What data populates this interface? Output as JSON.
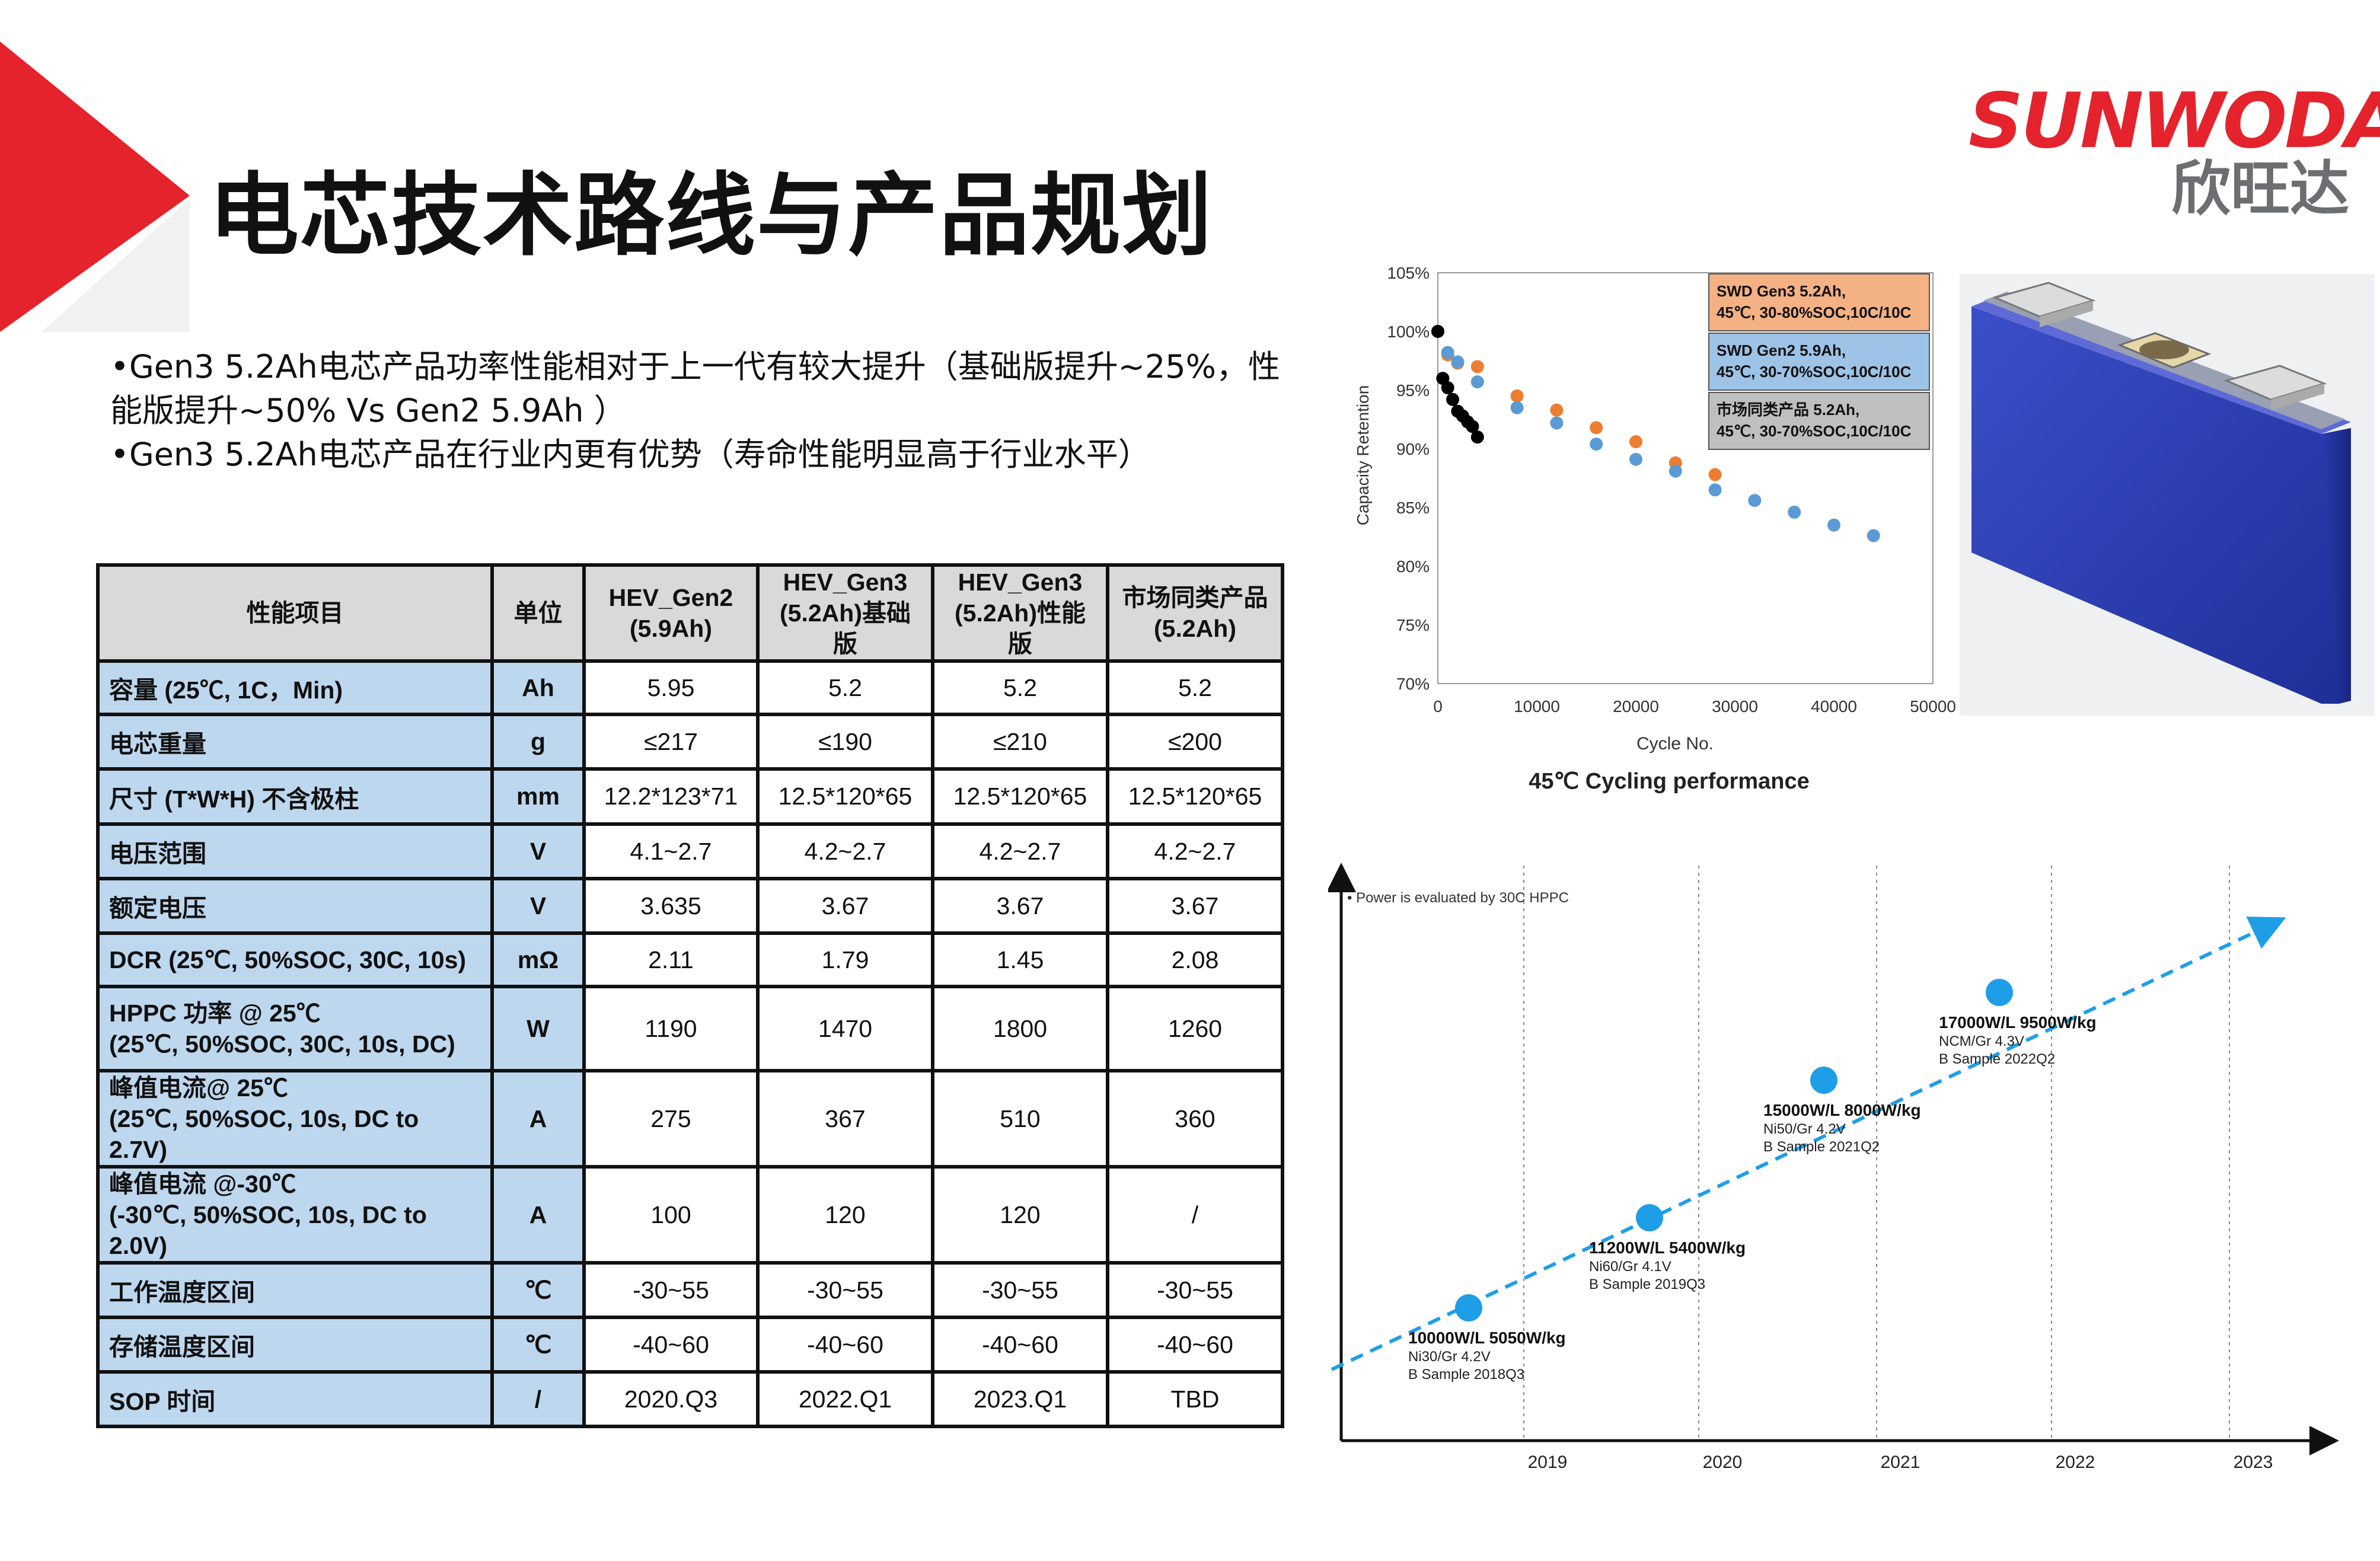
{
  "title": "电芯技术路线与产品规划",
  "logo": {
    "en": "SUNWODA",
    "cn": "欣旺达"
  },
  "colors": {
    "accent_red": "#e4232c",
    "header_gray": "#d9d9d9",
    "label_blue": "#bdd7ee",
    "series_orange": "#ed7d31",
    "series_blue": "#5b9bd5",
    "series_black": "#000000",
    "roadmap_blue": "#1f9ee8"
  },
  "bullets": [
    "•Gen3 5.2Ah电芯产品功率性能相对于上一代有较大提升（基础版提升~25%，性能版提升~50% Vs Gen2 5.9Ah ）",
    "•Gen3 5.2Ah电芯产品在行业内更有优势（寿命性能明显高于行业水平）"
  ],
  "table": {
    "headers": [
      [
        "性能项目"
      ],
      [
        "单位"
      ],
      [
        "HEV_Gen2",
        "(5.9Ah)"
      ],
      [
        "HEV_Gen3",
        "(5.2Ah)基础版"
      ],
      [
        "HEV_Gen3",
        "(5.2Ah)性能版"
      ],
      [
        "市场同类产品",
        "(5.2Ah)"
      ]
    ],
    "rows": [
      {
        "label": [
          "容量 (25℃, 1C，Min)"
        ],
        "unit": "Ah",
        "values": [
          "5.95",
          "5.2",
          "5.2",
          "5.2"
        ]
      },
      {
        "label": [
          "电芯重量"
        ],
        "unit": "g",
        "values": [
          "≤217",
          "≤190",
          "≤210",
          "≤200"
        ]
      },
      {
        "label": [
          "尺寸 (T*W*H) 不含极柱"
        ],
        "unit": "mm",
        "values": [
          "12.2*123*71",
          "12.5*120*65",
          "12.5*120*65",
          "12.5*120*65"
        ]
      },
      {
        "label": [
          "电压范围"
        ],
        "unit": "V",
        "values": [
          "4.1~2.7",
          "4.2~2.7",
          "4.2~2.7",
          "4.2~2.7"
        ]
      },
      {
        "label": [
          "额定电压"
        ],
        "unit": "V",
        "values": [
          "3.635",
          "3.67",
          "3.67",
          "3.67"
        ]
      },
      {
        "label": [
          "DCR (25℃, 50%SOC, 30C, 10s)"
        ],
        "unit": "mΩ",
        "values": [
          "2.11",
          "1.79",
          "1.45",
          "2.08"
        ]
      },
      {
        "label": [
          "HPPC 功率 @ 25℃",
          "(25℃, 50%SOC, 30C, 10s, DC)"
        ],
        "unit": "W",
        "values": [
          "1190",
          "1470",
          "1800",
          "1260"
        ]
      },
      {
        "label": [
          "峰值电流@ 25℃",
          "(25℃, 50%SOC, 10s, DC to 2.7V)"
        ],
        "unit": "A",
        "values": [
          "275",
          "367",
          "510",
          "360"
        ]
      },
      {
        "label": [
          "峰值电流 @-30℃",
          " (-30℃, 50%SOC, 10s, DC to 2.0V)"
        ],
        "unit": "A",
        "values": [
          "100",
          "120",
          "120",
          "/"
        ]
      },
      {
        "label": [
          "工作温度区间"
        ],
        "unit": "℃",
        "values": [
          "-30~55",
          "-30~55",
          "-30~55",
          "-30~55"
        ]
      },
      {
        "label": [
          "存储温度区间"
        ],
        "unit": "℃",
        "values": [
          "-40~60",
          "-40~60",
          "-40~60",
          "-40~60"
        ]
      },
      {
        "label": [
          "SOP 时间"
        ],
        "unit": "/",
        "values": [
          "2020.Q3",
          "2022.Q1",
          "2023.Q1",
          "TBD"
        ]
      }
    ]
  },
  "chart_data": [
    {
      "type": "scatter",
      "title": "45℃ Cycling performance",
      "xlabel": "Cycle No.",
      "ylabel": "Capacity Retention",
      "xlim": [
        0,
        50000
      ],
      "ylim": [
        70,
        105
      ],
      "xticks": [
        "0",
        "10000",
        "20000",
        "30000",
        "40000",
        "50000"
      ],
      "yticks": [
        "70%",
        "75%",
        "80%",
        "85%",
        "90%",
        "95%",
        "100%",
        "105%"
      ],
      "grid": false,
      "legend_position": "top-right",
      "series": [
        {
          "name": [
            "SWD Gen3 5.2Ah,",
            "45℃, 30-80%SOC,10C/10C"
          ],
          "color": "#ed7d31",
          "x": [
            0,
            1000,
            2000,
            4000,
            8000,
            12000,
            16000,
            20000,
            24000,
            28000
          ],
          "y": [
            100,
            98,
            97.3,
            97,
            94.5,
            93.3,
            91.8,
            90.6,
            88.8,
            87.8
          ]
        },
        {
          "name": [
            "SWD Gen2 5.9Ah,",
            "45℃, 30-70%SOC,10C/10C"
          ],
          "color": "#5b9bd5",
          "x": [
            0,
            1000,
            2000,
            4000,
            8000,
            12000,
            16000,
            20000,
            24000,
            28000,
            32000,
            36000,
            40000,
            44000
          ],
          "y": [
            100,
            98.2,
            97.4,
            95.7,
            93.5,
            92.2,
            90.4,
            89.1,
            88.1,
            86.5,
            85.6,
            84.6,
            83.5,
            82.6
          ]
        },
        {
          "name": [
            "市场同类产品 5.2Ah,",
            "45℃, 30-70%SOC,10C/10C"
          ],
          "color": "#000000",
          "x": [
            0,
            500,
            1000,
            1500,
            2000,
            2500,
            3000,
            3500,
            4000
          ],
          "y": [
            100,
            96,
            95.2,
            94.2,
            93.2,
            92.8,
            92.3,
            91.9,
            91
          ]
        }
      ]
    },
    {
      "type": "scatter",
      "note": "•  Power is evaluated by 30C HPPC",
      "xticks": [
        "2019",
        "2020",
        "2021",
        "2022",
        "2023"
      ],
      "trend": "dashed line",
      "points": [
        {
          "label": "10000W/L 5050W/kg",
          "chem": "Ni30/Gr 4.2V",
          "sample": "B Sample 2018Q3"
        },
        {
          "label": "11200W/L 5400W/kg",
          "chem": "Ni60/Gr 4.1V",
          "sample": "B Sample 2019Q3"
        },
        {
          "label": "15000W/L 8000W/kg",
          "chem": "Ni50/Gr 4.2V",
          "sample": "B Sample 2021Q2"
        },
        {
          "label": "17000W/L 9500W/kg",
          "chem": "NCM/Gr 4.3V",
          "sample": "B Sample 2022Q2"
        }
      ]
    }
  ]
}
